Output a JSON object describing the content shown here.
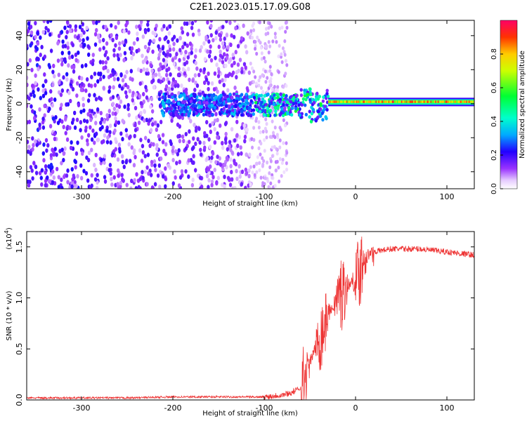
{
  "figure_title": "C2E1.2023.015.17.09.G08",
  "colors": {
    "snr_line": "#ee3333",
    "spectrum_scale": [
      "#ffffff",
      "#eedcff",
      "#cc99ff",
      "#9933ff",
      "#6600ee",
      "#0000ff",
      "#00ccff",
      "#00ff66",
      "#ffff00",
      "#ff6600",
      "#ff0000",
      "#ff0066"
    ]
  },
  "chart_data": [
    {
      "type": "heatmap",
      "title": "",
      "xlabel": "Height of straight line (km)",
      "ylabel": "Frequency (Hz)",
      "xlim": [
        -360,
        130
      ],
      "ylim": [
        -50,
        49
      ],
      "x_ticks": [
        -300,
        -200,
        -100,
        0,
        100
      ],
      "y_ticks": [
        -40,
        -20,
        0,
        20,
        40
      ],
      "colorbar": {
        "label": "Normalized spectral amplitude",
        "range": [
          0,
          1
        ],
        "ticks": [
          "0.0",
          "0.2",
          "0.4",
          "0.6",
          "0.8"
        ]
      },
      "regions": [
        {
          "description_x": [
            -360,
            -115
          ],
          "freq": [
            -50,
            49
          ],
          "amplitude": "0.1-0.4 scattered"
        },
        {
          "description_x": [
            -115,
            -75
          ],
          "freq": [
            -50,
            49
          ],
          "amplitude": "0.05-0.2 faint"
        },
        {
          "description_x": [
            -215,
            -30
          ],
          "freq": [
            -12,
            8
          ],
          "amplitude": "0.3-0.8 broadened line"
        },
        {
          "description_x": [
            -30,
            130
          ],
          "freq": [
            -1,
            3
          ],
          "amplitude": "0.7-1.0 narrow line"
        }
      ]
    },
    {
      "type": "line",
      "title": "",
      "xlabel": "Height of straight line (km)",
      "ylabel": "SNR (10 * v/v)",
      "scale_label": "(x10",
      "scale_exponent": "4",
      "xlim": [
        -360,
        130
      ],
      "ylim": [
        0,
        1.65
      ],
      "x_ticks": [
        -300,
        -200,
        -100,
        0,
        100
      ],
      "y_ticks": [
        "0.0",
        "0.5",
        "1.0",
        "1.5"
      ],
      "series": [
        {
          "x": [
            -360,
            -300,
            -250,
            -200,
            -150,
            -120,
            -100,
            -90,
            -80,
            -70,
            -60,
            -55,
            -50,
            -45,
            -40,
            -35,
            -30,
            -25,
            -20,
            -15,
            -10,
            -5,
            0,
            5,
            10,
            20,
            30,
            40,
            50,
            60,
            70,
            80,
            90,
            100,
            110,
            120,
            130
          ],
          "values": [
            0.02,
            0.02,
            0.02,
            0.03,
            0.03,
            0.03,
            0.03,
            0.04,
            0.05,
            0.07,
            0.12,
            0.2,
            0.35,
            0.5,
            0.6,
            0.7,
            0.85,
            0.9,
            1.0,
            1.05,
            1.1,
            1.15,
            1.2,
            1.3,
            1.4,
            1.45,
            1.47,
            1.48,
            1.48,
            1.48,
            1.48,
            1.47,
            1.46,
            1.45,
            1.44,
            1.43,
            1.42
          ]
        }
      ]
    }
  ]
}
